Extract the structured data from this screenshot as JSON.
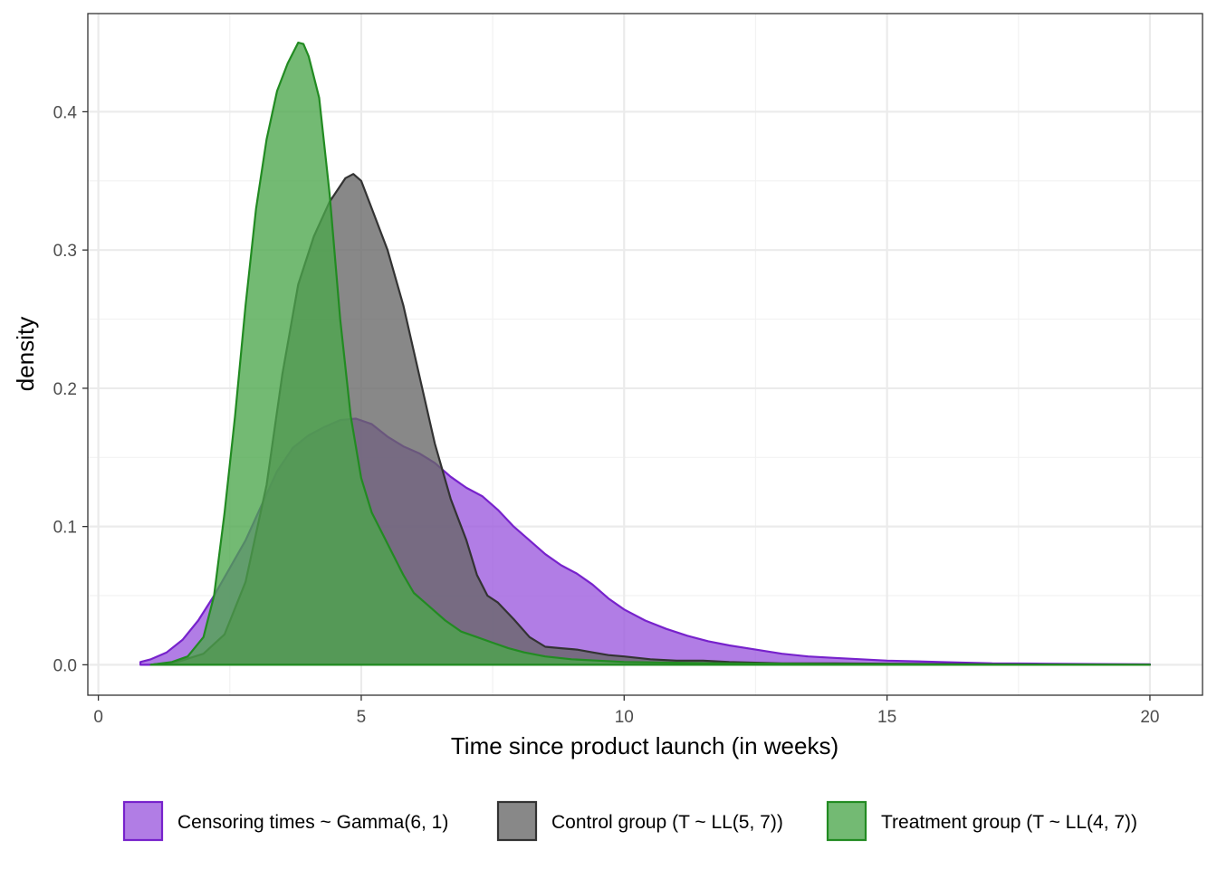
{
  "chart_data": {
    "type": "area",
    "title": "",
    "xlabel": "Time since product launch (in weeks)",
    "ylabel": "density",
    "xlim": [
      -0.2,
      21.0
    ],
    "ylim": [
      -0.022,
      0.471
    ],
    "x_ticks": [
      0,
      5,
      10,
      15,
      20
    ],
    "y_ticks": [
      0.0,
      0.1,
      0.2,
      0.3,
      0.4
    ],
    "x_tick_labels": [
      "0",
      "5",
      "10",
      "15",
      "20"
    ],
    "y_tick_labels": [
      "0.0",
      "0.1",
      "0.2",
      "0.3",
      "0.4"
    ],
    "grid": true,
    "legend_position": "bottom",
    "series": [
      {
        "name": "Censoring times ~ Gamma(6, 1)",
        "fill": "#9b59de",
        "stroke": "#7722cc",
        "points": [
          [
            0.8,
            0.002
          ],
          [
            1.0,
            0.004
          ],
          [
            1.3,
            0.009
          ],
          [
            1.6,
            0.018
          ],
          [
            1.9,
            0.032
          ],
          [
            2.2,
            0.05
          ],
          [
            2.5,
            0.07
          ],
          [
            2.8,
            0.09
          ],
          [
            3.1,
            0.115
          ],
          [
            3.4,
            0.14
          ],
          [
            3.7,
            0.157
          ],
          [
            4.0,
            0.166
          ],
          [
            4.3,
            0.172
          ],
          [
            4.6,
            0.177
          ],
          [
            4.9,
            0.178
          ],
          [
            5.2,
            0.174
          ],
          [
            5.5,
            0.165
          ],
          [
            5.8,
            0.158
          ],
          [
            6.1,
            0.153
          ],
          [
            6.4,
            0.146
          ],
          [
            6.7,
            0.136
          ],
          [
            7.0,
            0.128
          ],
          [
            7.3,
            0.122
          ],
          [
            7.6,
            0.112
          ],
          [
            7.9,
            0.1
          ],
          [
            8.2,
            0.09
          ],
          [
            8.5,
            0.08
          ],
          [
            8.8,
            0.072
          ],
          [
            9.1,
            0.066
          ],
          [
            9.4,
            0.058
          ],
          [
            9.7,
            0.048
          ],
          [
            10.0,
            0.04
          ],
          [
            10.4,
            0.032
          ],
          [
            10.8,
            0.026
          ],
          [
            11.2,
            0.021
          ],
          [
            11.6,
            0.017
          ],
          [
            12.0,
            0.014
          ],
          [
            12.5,
            0.011
          ],
          [
            13.0,
            0.008
          ],
          [
            13.5,
            0.006
          ],
          [
            14.0,
            0.005
          ],
          [
            15.0,
            0.003
          ],
          [
            16.0,
            0.002
          ],
          [
            17.0,
            0.001
          ],
          [
            18.0,
            0.0008
          ],
          [
            19.0,
            0.0005
          ],
          [
            20.0,
            0.0003
          ]
        ]
      },
      {
        "name": "Control group (T ~ LL(5, 7))",
        "fill": "#666666",
        "stroke": "#333333",
        "points": [
          [
            1.0,
            0.0
          ],
          [
            1.5,
            0.002
          ],
          [
            2.0,
            0.008
          ],
          [
            2.4,
            0.022
          ],
          [
            2.8,
            0.06
          ],
          [
            3.2,
            0.13
          ],
          [
            3.5,
            0.21
          ],
          [
            3.8,
            0.275
          ],
          [
            4.1,
            0.31
          ],
          [
            4.4,
            0.335
          ],
          [
            4.7,
            0.352
          ],
          [
            4.85,
            0.355
          ],
          [
            5.0,
            0.35
          ],
          [
            5.2,
            0.33
          ],
          [
            5.5,
            0.3
          ],
          [
            5.8,
            0.26
          ],
          [
            6.1,
            0.21
          ],
          [
            6.4,
            0.16
          ],
          [
            6.7,
            0.12
          ],
          [
            7.0,
            0.09
          ],
          [
            7.2,
            0.065
          ],
          [
            7.4,
            0.05
          ],
          [
            7.6,
            0.045
          ],
          [
            7.9,
            0.033
          ],
          [
            8.2,
            0.02
          ],
          [
            8.5,
            0.013
          ],
          [
            8.8,
            0.012
          ],
          [
            9.1,
            0.011
          ],
          [
            9.4,
            0.009
          ],
          [
            9.7,
            0.007
          ],
          [
            10.0,
            0.006
          ],
          [
            10.5,
            0.004
          ],
          [
            11.0,
            0.003
          ],
          [
            11.5,
            0.003
          ],
          [
            12.0,
            0.002
          ],
          [
            13.0,
            0.001
          ],
          [
            14.0,
            0.001
          ],
          [
            16.0,
            0.0005
          ],
          [
            18.0,
            0.0002
          ],
          [
            20.0,
            0.0
          ]
        ]
      },
      {
        "name": "Treatment group (T ~ LL(4, 7))",
        "fill": "#4ca64c",
        "stroke": "#228b22",
        "points": [
          [
            1.0,
            0.0
          ],
          [
            1.4,
            0.002
          ],
          [
            1.7,
            0.006
          ],
          [
            2.0,
            0.02
          ],
          [
            2.2,
            0.05
          ],
          [
            2.4,
            0.11
          ],
          [
            2.6,
            0.18
          ],
          [
            2.8,
            0.26
          ],
          [
            3.0,
            0.33
          ],
          [
            3.2,
            0.38
          ],
          [
            3.4,
            0.415
          ],
          [
            3.6,
            0.435
          ],
          [
            3.8,
            0.45
          ],
          [
            3.9,
            0.449
          ],
          [
            4.0,
            0.44
          ],
          [
            4.2,
            0.41
          ],
          [
            4.4,
            0.34
          ],
          [
            4.6,
            0.25
          ],
          [
            4.8,
            0.18
          ],
          [
            5.0,
            0.135
          ],
          [
            5.2,
            0.11
          ],
          [
            5.4,
            0.095
          ],
          [
            5.6,
            0.08
          ],
          [
            5.8,
            0.065
          ],
          [
            6.0,
            0.052
          ],
          [
            6.3,
            0.042
          ],
          [
            6.6,
            0.032
          ],
          [
            6.9,
            0.024
          ],
          [
            7.2,
            0.02
          ],
          [
            7.5,
            0.016
          ],
          [
            7.8,
            0.012
          ],
          [
            8.1,
            0.009
          ],
          [
            8.5,
            0.006
          ],
          [
            9.0,
            0.004
          ],
          [
            9.5,
            0.003
          ],
          [
            10.0,
            0.002
          ],
          [
            11.0,
            0.0015
          ],
          [
            12.0,
            0.001
          ],
          [
            14.0,
            0.0005
          ],
          [
            16.0,
            0.0002
          ],
          [
            18.0,
            0.0001
          ],
          [
            20.0,
            0.0
          ]
        ]
      }
    ]
  }
}
